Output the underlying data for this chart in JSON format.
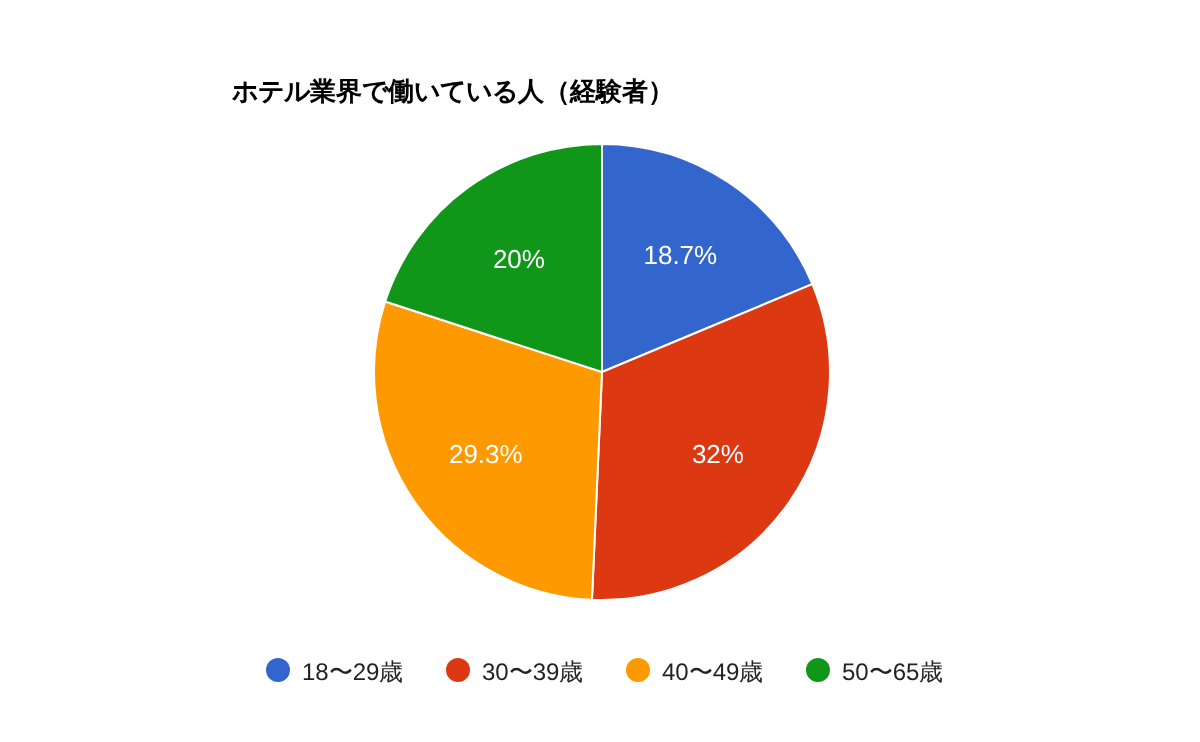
{
  "chart_data": {
    "type": "pie",
    "title": "ホテル業界で働いている人（経験者）",
    "categories": [
      "18〜29歳",
      "30〜39歳",
      "40〜49歳",
      "50〜65歳"
    ],
    "values": [
      18.7,
      32,
      29.3,
      20
    ],
    "colors": [
      "#3366cc",
      "#dc3912",
      "#ff9900",
      "#109618"
    ],
    "value_labels": [
      "18.7%",
      "32%",
      "29.3%",
      "20%"
    ],
    "legend": "bottom"
  }
}
